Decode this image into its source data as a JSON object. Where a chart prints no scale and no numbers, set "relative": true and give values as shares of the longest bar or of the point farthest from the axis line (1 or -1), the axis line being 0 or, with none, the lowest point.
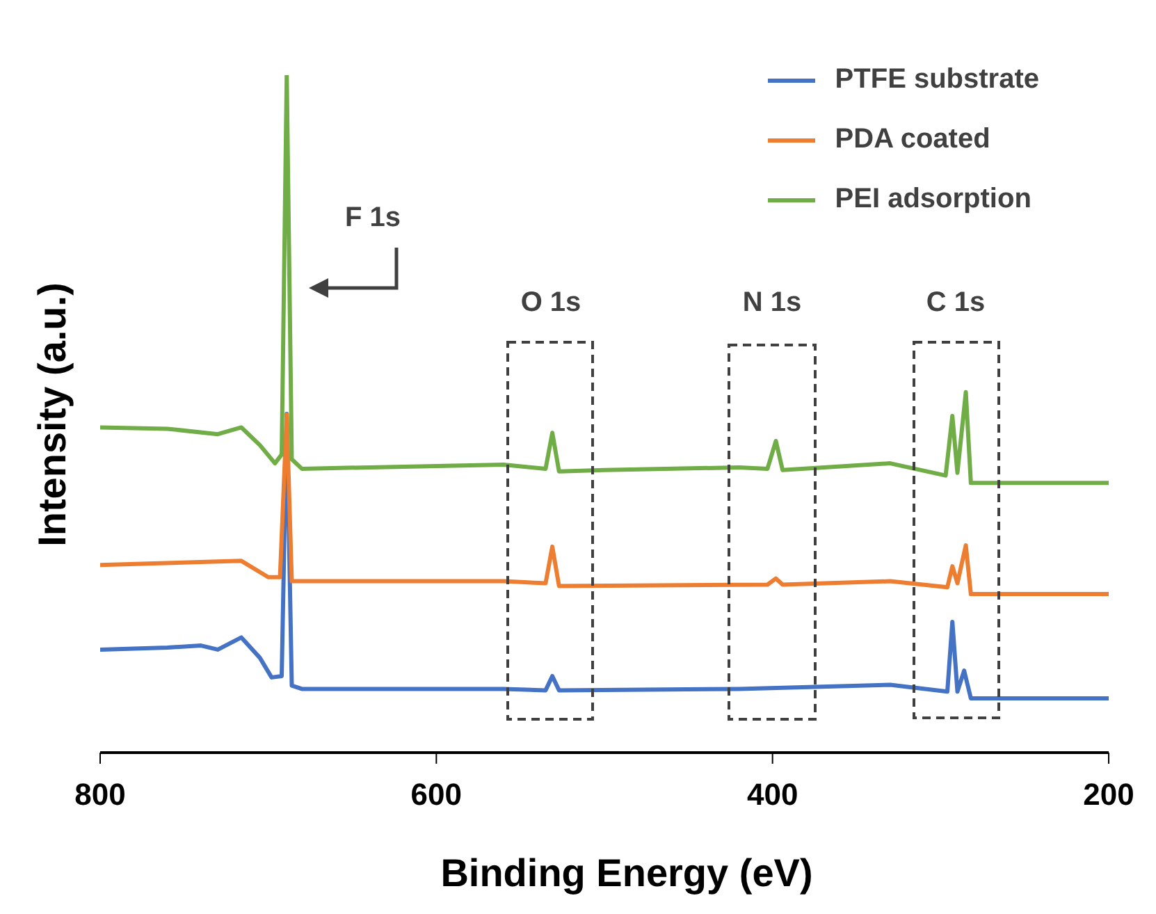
{
  "chart_data": {
    "type": "line",
    "xlabel": "Binding Energy (eV)",
    "ylabel": "Intensity (a.u.)",
    "relative": true,
    "xlim": [
      800,
      200
    ],
    "xticks": [
      800,
      600,
      400,
      200
    ],
    "legend": "top right",
    "marker": "none",
    "line_style": "solid",
    "annotations": [
      "F 1s",
      "O 1s",
      "N 1s",
      "C 1s"
    ],
    "series": [
      {
        "name": "PTFE substrate",
        "color": "#4472c4",
        "x": [
          800,
          760,
          740,
          730,
          716,
          705,
          698,
          692,
          689,
          686,
          680,
          560,
          535,
          531,
          527,
          420,
          330,
          296,
          293,
          290,
          286,
          282,
          200
        ],
        "values": [
          0.152,
          0.155,
          0.158,
          0.152,
          0.17,
          0.14,
          0.111,
          0.113,
          0.5,
          0.099,
          0.094,
          0.094,
          0.092,
          0.113,
          0.092,
          0.094,
          0.1,
          0.09,
          0.193,
          0.09,
          0.121,
          0.08,
          0.08
        ]
      },
      {
        "name": "PDA coated",
        "color": "#ed7d31",
        "x": [
          800,
          716,
          700,
          693,
          689,
          686,
          560,
          535,
          531,
          527,
          403,
          398,
          394,
          330,
          296,
          293,
          290,
          285,
          282,
          200
        ],
        "values": [
          0.277,
          0.283,
          0.259,
          0.259,
          0.499,
          0.253,
          0.253,
          0.25,
          0.304,
          0.246,
          0.248,
          0.257,
          0.248,
          0.253,
          0.244,
          0.275,
          0.25,
          0.306,
          0.234,
          0.234
        ]
      },
      {
        "name": "PEI adsorption",
        "color": "#70ad47",
        "x": [
          800,
          760,
          730,
          716,
          705,
          696,
          692,
          689,
          686,
          680,
          560,
          535,
          531,
          527,
          500,
          420,
          403,
          398,
          394,
          330,
          297,
          293,
          290,
          285,
          282,
          200
        ],
        "values": [
          0.48,
          0.478,
          0.47,
          0.48,
          0.454,
          0.427,
          0.44,
          1.0,
          0.433,
          0.419,
          0.425,
          0.419,
          0.472,
          0.415,
          0.417,
          0.421,
          0.419,
          0.46,
          0.417,
          0.427,
          0.409,
          0.497,
          0.413,
          0.532,
          0.398,
          0.398
        ]
      }
    ]
  }
}
